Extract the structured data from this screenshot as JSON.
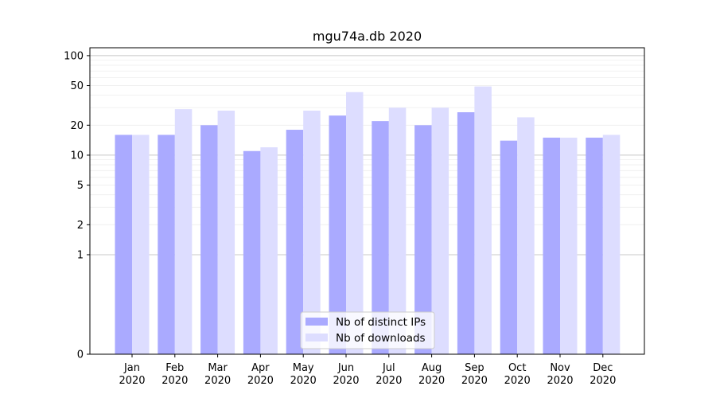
{
  "chart_data": {
    "type": "bar",
    "title": "mgu74a.db 2020",
    "xlabel": "",
    "ylabel": "",
    "y_scale": "symlog",
    "ylim": [
      0,
      120
    ],
    "y_ticks": [
      0,
      1,
      2,
      5,
      10,
      20,
      50,
      100
    ],
    "grid": true,
    "legend_position": "lower-center",
    "categories": [
      {
        "month": "Jan",
        "year": "2020"
      },
      {
        "month": "Feb",
        "year": "2020"
      },
      {
        "month": "Mar",
        "year": "2020"
      },
      {
        "month": "Apr",
        "year": "2020"
      },
      {
        "month": "May",
        "year": "2020"
      },
      {
        "month": "Jun",
        "year": "2020"
      },
      {
        "month": "Jul",
        "year": "2020"
      },
      {
        "month": "Aug",
        "year": "2020"
      },
      {
        "month": "Sep",
        "year": "2020"
      },
      {
        "month": "Oct",
        "year": "2020"
      },
      {
        "month": "Nov",
        "year": "2020"
      },
      {
        "month": "Dec",
        "year": "2020"
      }
    ],
    "series": [
      {
        "name": "Nb of distinct IPs",
        "color": "#aaaaff",
        "values": [
          16,
          16,
          20,
          11,
          18,
          25,
          22,
          20,
          27,
          14,
          15,
          15
        ]
      },
      {
        "name": "Nb of downloads",
        "color": "#ddddff",
        "values": [
          16,
          29,
          28,
          12,
          28,
          43,
          30,
          30,
          49,
          24,
          15,
          16
        ]
      }
    ]
  }
}
